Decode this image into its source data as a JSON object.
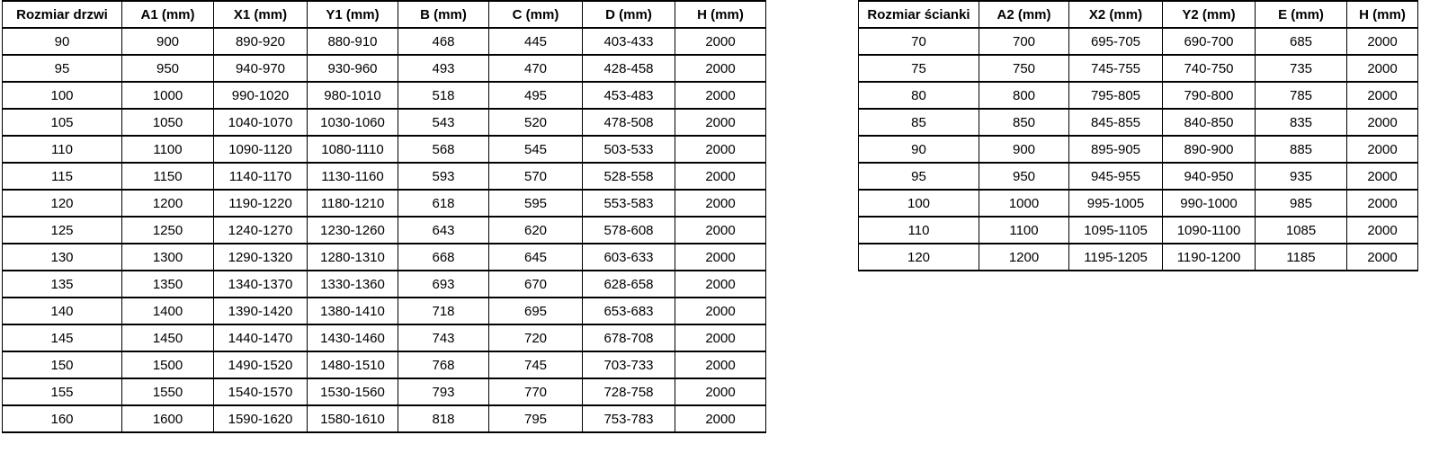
{
  "colors": {
    "background": "#ffffff",
    "border": "#000000",
    "text": "#000000"
  },
  "door_table": {
    "headers": [
      "Rozmiar drzwi",
      "A1 (mm)",
      "X1 (mm)",
      "Y1 (mm)",
      "B (mm)",
      "C (mm)",
      "D (mm)",
      "H (mm)"
    ],
    "rows": [
      [
        "90",
        "900",
        "890-920",
        "880-910",
        "468",
        "445",
        "403-433",
        "2000"
      ],
      [
        "95",
        "950",
        "940-970",
        "930-960",
        "493",
        "470",
        "428-458",
        "2000"
      ],
      [
        "100",
        "1000",
        "990-1020",
        "980-1010",
        "518",
        "495",
        "453-483",
        "2000"
      ],
      [
        "105",
        "1050",
        "1040-1070",
        "1030-1060",
        "543",
        "520",
        "478-508",
        "2000"
      ],
      [
        "110",
        "1100",
        "1090-1120",
        "1080-1110",
        "568",
        "545",
        "503-533",
        "2000"
      ],
      [
        "115",
        "1150",
        "1140-1170",
        "1130-1160",
        "593",
        "570",
        "528-558",
        "2000"
      ],
      [
        "120",
        "1200",
        "1190-1220",
        "1180-1210",
        "618",
        "595",
        "553-583",
        "2000"
      ],
      [
        "125",
        "1250",
        "1240-1270",
        "1230-1260",
        "643",
        "620",
        "578-608",
        "2000"
      ],
      [
        "130",
        "1300",
        "1290-1320",
        "1280-1310",
        "668",
        "645",
        "603-633",
        "2000"
      ],
      [
        "135",
        "1350",
        "1340-1370",
        "1330-1360",
        "693",
        "670",
        "628-658",
        "2000"
      ],
      [
        "140",
        "1400",
        "1390-1420",
        "1380-1410",
        "718",
        "695",
        "653-683",
        "2000"
      ],
      [
        "145",
        "1450",
        "1440-1470",
        "1430-1460",
        "743",
        "720",
        "678-708",
        "2000"
      ],
      [
        "150",
        "1500",
        "1490-1520",
        "1480-1510",
        "768",
        "745",
        "703-733",
        "2000"
      ],
      [
        "155",
        "1550",
        "1540-1570",
        "1530-1560",
        "793",
        "770",
        "728-758",
        "2000"
      ],
      [
        "160",
        "1600",
        "1590-1620",
        "1580-1610",
        "818",
        "795",
        "753-783",
        "2000"
      ]
    ]
  },
  "wall_table": {
    "headers": [
      "Rozmiar ścianki",
      "A2 (mm)",
      "X2 (mm)",
      "Y2 (mm)",
      "E (mm)",
      "H (mm)"
    ],
    "rows": [
      [
        "70",
        "700",
        "695-705",
        "690-700",
        "685",
        "2000"
      ],
      [
        "75",
        "750",
        "745-755",
        "740-750",
        "735",
        "2000"
      ],
      [
        "80",
        "800",
        "795-805",
        "790-800",
        "785",
        "2000"
      ],
      [
        "85",
        "850",
        "845-855",
        "840-850",
        "835",
        "2000"
      ],
      [
        "90",
        "900",
        "895-905",
        "890-900",
        "885",
        "2000"
      ],
      [
        "95",
        "950",
        "945-955",
        "940-950",
        "935",
        "2000"
      ],
      [
        "100",
        "1000",
        "995-1005",
        "990-1000",
        "985",
        "2000"
      ],
      [
        "110",
        "1100",
        "1095-1105",
        "1090-1100",
        "1085",
        "2000"
      ],
      [
        "120",
        "1200",
        "1195-1205",
        "1190-1200",
        "1185",
        "2000"
      ]
    ]
  }
}
